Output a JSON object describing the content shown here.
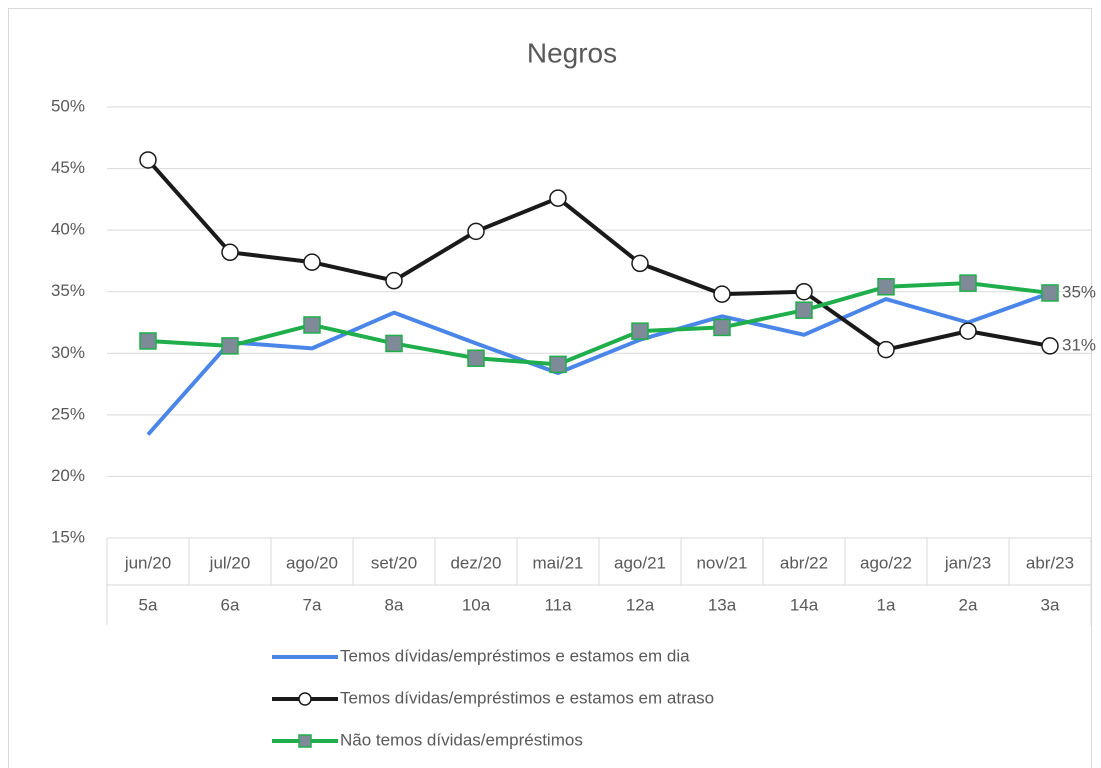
{
  "chart_data": {
    "type": "line",
    "title": "Negros",
    "categories": [
      "jun/20",
      "jul/20",
      "ago/20",
      "set/20",
      "dez/20",
      "mai/21",
      "ago/21",
      "nov/21",
      "abr/22",
      "ago/22",
      "jan/23",
      "abr/23"
    ],
    "rounds": [
      "5a",
      "6a",
      "7a",
      "8a",
      "10a",
      "11a",
      "12a",
      "13a",
      "14a",
      "1a",
      "2a",
      "3a"
    ],
    "ylim": [
      15,
      50
    ],
    "yticks": [
      {
        "value": 15,
        "label": "15%"
      },
      {
        "value": 20,
        "label": "20%"
      },
      {
        "value": 25,
        "label": "25%"
      },
      {
        "value": 30,
        "label": "30%"
      },
      {
        "value": 35,
        "label": "35%"
      },
      {
        "value": 40,
        "label": "40%"
      },
      {
        "value": 45,
        "label": "45%"
      },
      {
        "value": 50,
        "label": "50%"
      }
    ],
    "grid": true,
    "series": [
      {
        "name": "Temos dívidas/empréstimos e estamos em dia",
        "color": "#4a86e8",
        "marker": "none",
        "values": [
          23.4,
          30.9,
          30.4,
          33.3,
          30.8,
          28.4,
          31.1,
          33.0,
          31.5,
          34.4,
          32.5,
          34.9
        ]
      },
      {
        "name": "Temos dívidas/empréstimos e estamos em atraso",
        "color": "#1a1a1a",
        "marker": "circle",
        "values": [
          45.7,
          38.2,
          37.4,
          35.9,
          39.9,
          42.6,
          37.3,
          34.8,
          35.0,
          30.3,
          31.8,
          30.6
        ],
        "value_labels": [
          null,
          null,
          null,
          null,
          null,
          null,
          null,
          null,
          null,
          null,
          null,
          "31%"
        ]
      },
      {
        "name": "Não temos dívidas/empréstimos",
        "color": "#1fae4b",
        "marker": "square",
        "values": [
          31.0,
          30.6,
          32.3,
          30.8,
          29.6,
          29.1,
          31.8,
          32.1,
          33.5,
          35.4,
          35.7,
          34.9
        ],
        "value_labels": [
          null,
          null,
          null,
          null,
          null,
          null,
          null,
          null,
          null,
          null,
          null,
          "35%"
        ]
      }
    ]
  }
}
